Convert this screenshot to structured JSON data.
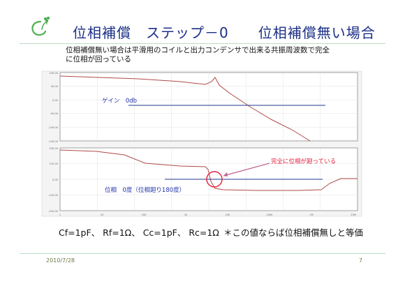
{
  "slide": {
    "title": "位相補償　ステップ－0　　位相補償無い場合",
    "description_lines": [
      "位相補償無い場合は平滑用のコイルと出力コンデンサで出来る共振周波数で完全",
      "に位相が回っている"
    ],
    "params_left": "Cf=1pF、 Rf=1Ω、 Cc=1pF、 Rc=1Ω",
    "params_right": "＊この値ならば位相補償無しと等価",
    "date": "2010/7/28",
    "page_number": "7"
  },
  "colors": {
    "title": "#1b2f86",
    "annotation_blue": "#2233aa",
    "annotation_red": "#e0203f",
    "trace": "#b04a4a",
    "reference_line": "#21368a",
    "logo_green": "#4caf50"
  },
  "chart_data": [
    {
      "type": "line",
      "annotation": "ゲイン　0db",
      "y_tick_labels": [
        "100.00",
        "50.00",
        "0.00",
        "-50.00",
        "-100.00",
        "-150.00"
      ]
    },
    {
      "type": "line",
      "annotation": "位相　0度（位相廻り180度）",
      "callout": "完全に位相が廻っている",
      "y_tick_labels": [
        "250.00",
        "125.00",
        "0.00",
        "-125.00",
        "-250.00"
      ],
      "x_tick_labels": [
        "1",
        "10",
        "100",
        "1k",
        "10k",
        "100k",
        "1M",
        "10M"
      ]
    }
  ]
}
